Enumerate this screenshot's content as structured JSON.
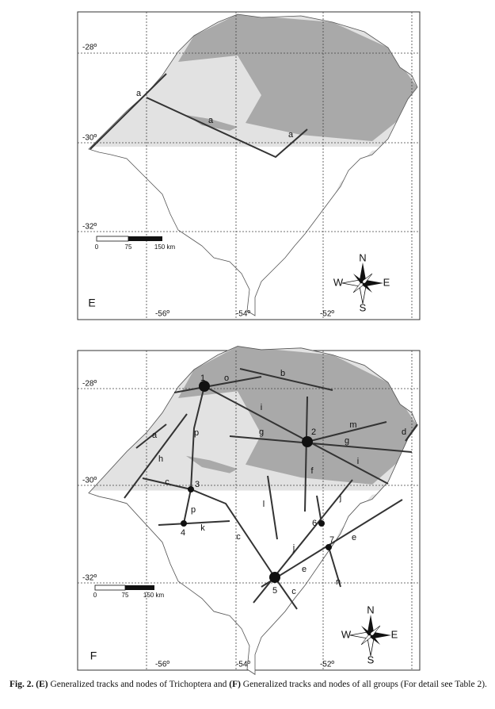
{
  "panels": [
    {
      "label": "E",
      "lat_labels": [
        "-28º",
        "-30º",
        "-32º"
      ],
      "lon_labels": [
        "-56º",
        "-54º",
        "-52º"
      ],
      "scale_labels": [
        "0",
        "75",
        "150 km"
      ],
      "compass": {
        "n": "N",
        "s": "S",
        "w": "W",
        "e": "E"
      },
      "track_labels": [
        "a",
        "a",
        "a"
      ]
    },
    {
      "label": "F",
      "lat_labels": [
        "-28º",
        "-30º",
        "-32º"
      ],
      "lon_labels": [
        "-56º",
        "-54º",
        "-52º"
      ],
      "scale_labels": [
        "0",
        "75",
        "150 km"
      ],
      "compass": {
        "n": "N",
        "s": "S",
        "w": "W",
        "e": "E"
      },
      "track_labels": [
        "o",
        "b",
        "i",
        "m",
        "d",
        "g",
        "g",
        "p",
        "a",
        "h",
        "f",
        "i",
        "c",
        "p",
        "k",
        "j",
        "l",
        "c",
        "j",
        "e",
        "e",
        "c",
        "n"
      ],
      "node_labels": [
        "1",
        "2",
        "3",
        "4",
        "5",
        "6",
        "7"
      ]
    }
  ],
  "caption": {
    "figure": "Fig. 2.",
    "tag_e": "(E)",
    "text_e": "Generalized tracks and nodes of Trichoptera and",
    "tag_f": "(F)",
    "text_f": "Generalized tracks and nodes of all groups (For detail see Table 2)."
  }
}
